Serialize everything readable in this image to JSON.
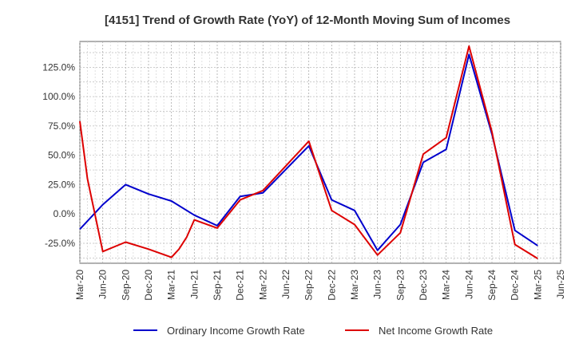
{
  "chart_data": {
    "type": "line",
    "title": "[4151]  Trend of Growth Rate (YoY) of 12-Month Moving Sum of Incomes",
    "xlabel": "",
    "ylabel": "",
    "x_ticks": [
      "Mar-20",
      "Jun-20",
      "Sep-20",
      "Dec-20",
      "Mar-21",
      "Jun-21",
      "Sep-21",
      "Dec-21",
      "Mar-22",
      "Jun-22",
      "Sep-22",
      "Dec-22",
      "Mar-23",
      "Jun-23",
      "Sep-23",
      "Dec-23",
      "Mar-24",
      "Jun-24",
      "Sep-24",
      "Dec-24",
      "Mar-25",
      "Jun-25"
    ],
    "y_ticks": [
      "125.0%",
      "100.0%",
      "75.0%",
      "50.0%",
      "25.0%",
      "0.0%",
      "-25.0%"
    ],
    "y_tick_values": [
      125,
      100,
      75,
      50,
      25,
      0,
      -25
    ],
    "ylim": [
      -42,
      147
    ],
    "grid": true,
    "legend_position": "bottom",
    "series": [
      {
        "name": "Ordinary Income Growth Rate",
        "color": "#0000cc",
        "values": [
          {
            "x": 0,
            "y": -13
          },
          {
            "x": 1,
            "y": 8
          },
          {
            "x": 2,
            "y": 25
          },
          {
            "x": 3,
            "y": 17
          },
          {
            "x": 4,
            "y": 11
          },
          {
            "x": 5,
            "y": -1
          },
          {
            "x": 6,
            "y": -10
          },
          {
            "x": 7,
            "y": 15
          },
          {
            "x": 8,
            "y": 18
          },
          {
            "x": 9,
            "y": 38
          },
          {
            "x": 10,
            "y": 58
          },
          {
            "x": 11,
            "y": 12
          },
          {
            "x": 12,
            "y": 3
          },
          {
            "x": 13,
            "y": -31
          },
          {
            "x": 14,
            "y": -9
          },
          {
            "x": 15,
            "y": 44
          },
          {
            "x": 16,
            "y": 55
          },
          {
            "x": 17,
            "y": 136
          },
          {
            "x": 18,
            "y": 68
          },
          {
            "x": 19,
            "y": -14
          },
          {
            "x": 20,
            "y": -27
          }
        ]
      },
      {
        "name": "Net Income Growth Rate",
        "color": "#dd0000",
        "values": [
          {
            "x": 0,
            "y": 79
          },
          {
            "x": 0.33,
            "y": 30
          },
          {
            "x": 1,
            "y": -32
          },
          {
            "x": 2,
            "y": -24
          },
          {
            "x": 3,
            "y": -30
          },
          {
            "x": 4,
            "y": -37
          },
          {
            "x": 4.33,
            "y": -30
          },
          {
            "x": 4.66,
            "y": -20
          },
          {
            "x": 5,
            "y": -5
          },
          {
            "x": 6,
            "y": -12
          },
          {
            "x": 7,
            "y": 12
          },
          {
            "x": 8,
            "y": 20
          },
          {
            "x": 9,
            "y": 41
          },
          {
            "x": 10,
            "y": 62
          },
          {
            "x": 11,
            "y": 3
          },
          {
            "x": 12,
            "y": -9
          },
          {
            "x": 13,
            "y": -35
          },
          {
            "x": 14,
            "y": -16
          },
          {
            "x": 15,
            "y": 51
          },
          {
            "x": 16,
            "y": 65
          },
          {
            "x": 17,
            "y": 143
          },
          {
            "x": 18,
            "y": 70
          },
          {
            "x": 19,
            "y": -26
          },
          {
            "x": 20,
            "y": -38
          }
        ]
      }
    ]
  }
}
